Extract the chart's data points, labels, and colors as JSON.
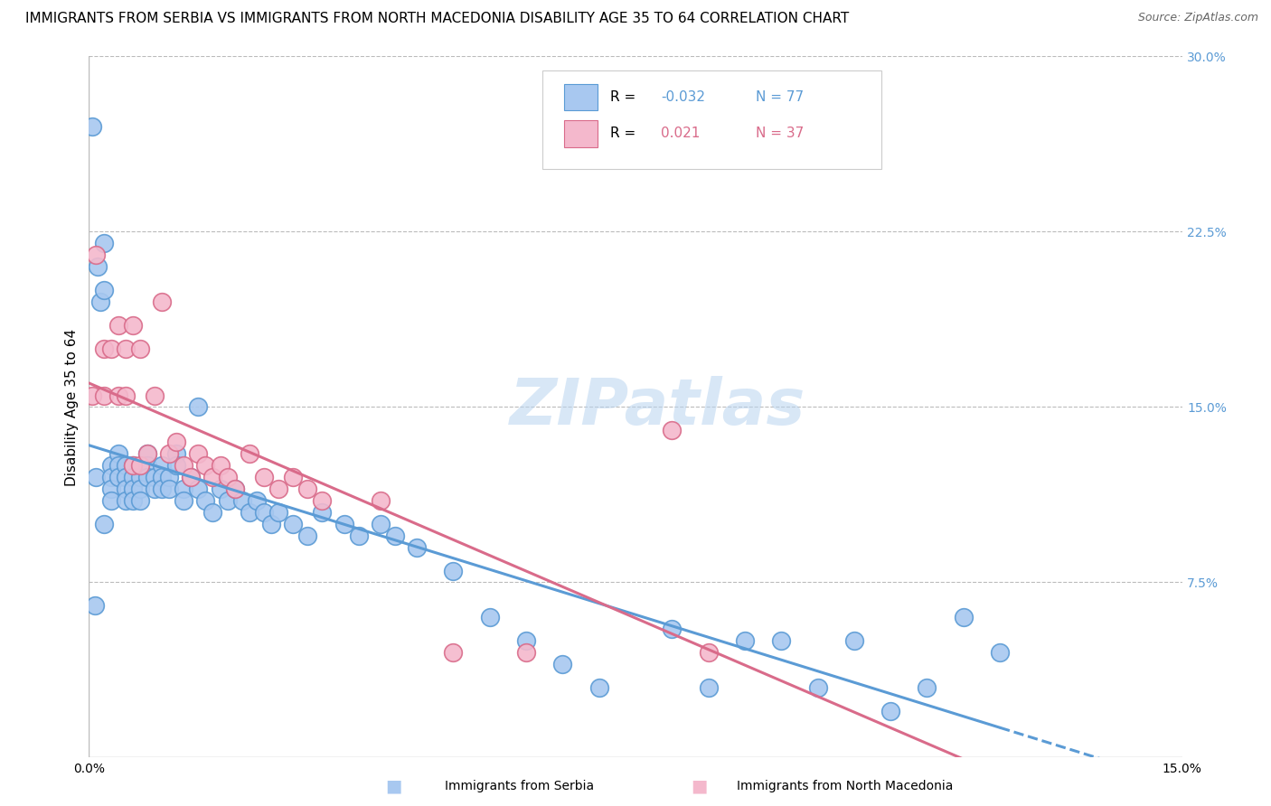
{
  "title": "IMMIGRANTS FROM SERBIA VS IMMIGRANTS FROM NORTH MACEDONIA DISABILITY AGE 35 TO 64 CORRELATION CHART",
  "source": "Source: ZipAtlas.com",
  "ylabel": "Disability Age 35 to 64",
  "xlim": [
    0.0,
    0.15
  ],
  "ylim": [
    0.0,
    0.3
  ],
  "yticks_right": [
    0.075,
    0.15,
    0.225,
    0.3
  ],
  "serbia_color": "#A8C8F0",
  "serbia_edge_color": "#5B9BD5",
  "north_mac_color": "#F4B8CC",
  "north_mac_edge_color": "#D96B8A",
  "serbia_R": -0.032,
  "serbia_N": 77,
  "north_mac_R": 0.021,
  "north_mac_N": 37,
  "serbia_scatter_x": [
    0.0005,
    0.0008,
    0.001,
    0.0012,
    0.0015,
    0.002,
    0.002,
    0.002,
    0.003,
    0.003,
    0.003,
    0.003,
    0.004,
    0.004,
    0.004,
    0.005,
    0.005,
    0.005,
    0.005,
    0.006,
    0.006,
    0.006,
    0.006,
    0.007,
    0.007,
    0.007,
    0.008,
    0.008,
    0.008,
    0.009,
    0.009,
    0.01,
    0.01,
    0.01,
    0.011,
    0.011,
    0.012,
    0.012,
    0.013,
    0.013,
    0.014,
    0.015,
    0.015,
    0.016,
    0.017,
    0.018,
    0.019,
    0.02,
    0.021,
    0.022,
    0.023,
    0.024,
    0.025,
    0.026,
    0.028,
    0.03,
    0.032,
    0.035,
    0.037,
    0.04,
    0.042,
    0.045,
    0.05,
    0.055,
    0.06,
    0.065,
    0.07,
    0.08,
    0.085,
    0.09,
    0.095,
    0.1,
    0.105,
    0.11,
    0.115,
    0.12,
    0.125
  ],
  "serbia_scatter_y": [
    0.27,
    0.065,
    0.12,
    0.21,
    0.195,
    0.22,
    0.2,
    0.1,
    0.125,
    0.12,
    0.115,
    0.11,
    0.13,
    0.125,
    0.12,
    0.125,
    0.12,
    0.115,
    0.11,
    0.125,
    0.12,
    0.115,
    0.11,
    0.12,
    0.115,
    0.11,
    0.13,
    0.125,
    0.12,
    0.12,
    0.115,
    0.125,
    0.12,
    0.115,
    0.12,
    0.115,
    0.13,
    0.125,
    0.115,
    0.11,
    0.12,
    0.15,
    0.115,
    0.11,
    0.105,
    0.115,
    0.11,
    0.115,
    0.11,
    0.105,
    0.11,
    0.105,
    0.1,
    0.105,
    0.1,
    0.095,
    0.105,
    0.1,
    0.095,
    0.1,
    0.095,
    0.09,
    0.08,
    0.06,
    0.05,
    0.04,
    0.03,
    0.055,
    0.03,
    0.05,
    0.05,
    0.03,
    0.05,
    0.02,
    0.03,
    0.06,
    0.045
  ],
  "north_mac_scatter_x": [
    0.0005,
    0.001,
    0.002,
    0.002,
    0.003,
    0.004,
    0.004,
    0.005,
    0.005,
    0.006,
    0.006,
    0.007,
    0.007,
    0.008,
    0.009,
    0.01,
    0.011,
    0.012,
    0.013,
    0.014,
    0.015,
    0.016,
    0.017,
    0.018,
    0.019,
    0.02,
    0.022,
    0.024,
    0.026,
    0.028,
    0.03,
    0.032,
    0.04,
    0.05,
    0.06,
    0.08,
    0.085
  ],
  "north_mac_scatter_y": [
    0.155,
    0.215,
    0.175,
    0.155,
    0.175,
    0.185,
    0.155,
    0.175,
    0.155,
    0.185,
    0.125,
    0.175,
    0.125,
    0.13,
    0.155,
    0.195,
    0.13,
    0.135,
    0.125,
    0.12,
    0.13,
    0.125,
    0.12,
    0.125,
    0.12,
    0.115,
    0.13,
    0.12,
    0.115,
    0.12,
    0.115,
    0.11,
    0.11,
    0.045,
    0.045,
    0.14,
    0.045
  ],
  "watermark_text": "ZIPatlas",
  "background_color": "#FFFFFF",
  "grid_color": "#BBBBBB",
  "title_fontsize": 11,
  "axis_label_fontsize": 11,
  "tick_fontsize": 10,
  "legend_R1_text": "R = -0.032   N = 77",
  "legend_R2_text": "R =  0.021   N = 37"
}
